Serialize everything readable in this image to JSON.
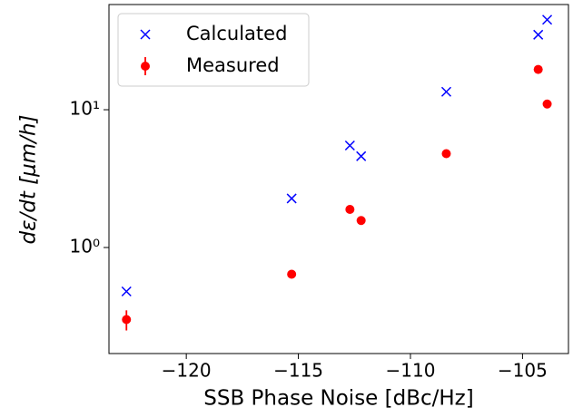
{
  "chart_data": {
    "type": "scatter",
    "x_label": "SSB Phase Noise [dBc/Hz]",
    "y_label": "dε/dt [μm/h]",
    "y_log": true,
    "legend": "upper left",
    "xlim": [
      -123.45,
      -102.95
    ],
    "xticks": [
      {
        "value": -120,
        "label": "−120"
      },
      {
        "value": -115,
        "label": "−115"
      },
      {
        "value": -110,
        "label": "−110"
      },
      {
        "value": -105,
        "label": "−105"
      }
    ],
    "ylim": [
      0.17,
      58
    ],
    "yticks": [
      {
        "value": 1,
        "label": "10⁰"
      },
      {
        "value": 10,
        "label": "10¹"
      }
    ],
    "series": [
      {
        "name": "Calculated",
        "color": "#0000ff",
        "marker": "x",
        "x": [
          -122.67,
          -115.3,
          -112.7,
          -112.2,
          -108.4,
          -104.3,
          -103.9
        ],
        "values": [
          0.48,
          2.27,
          5.5,
          4.6,
          13.5,
          35,
          45
        ]
      },
      {
        "name": "Measured",
        "color": "#ff0000",
        "marker": "o",
        "x": [
          -122.67,
          -115.3,
          -112.7,
          -112.2,
          -108.4,
          -104.3,
          -103.9
        ],
        "values": [
          0.3,
          0.64,
          1.89,
          1.57,
          4.8,
          19.6,
          11
        ],
        "errors": [
          0.05,
          0.03,
          0.03,
          0.03,
          0.08,
          0.3,
          0.2
        ]
      }
    ]
  }
}
